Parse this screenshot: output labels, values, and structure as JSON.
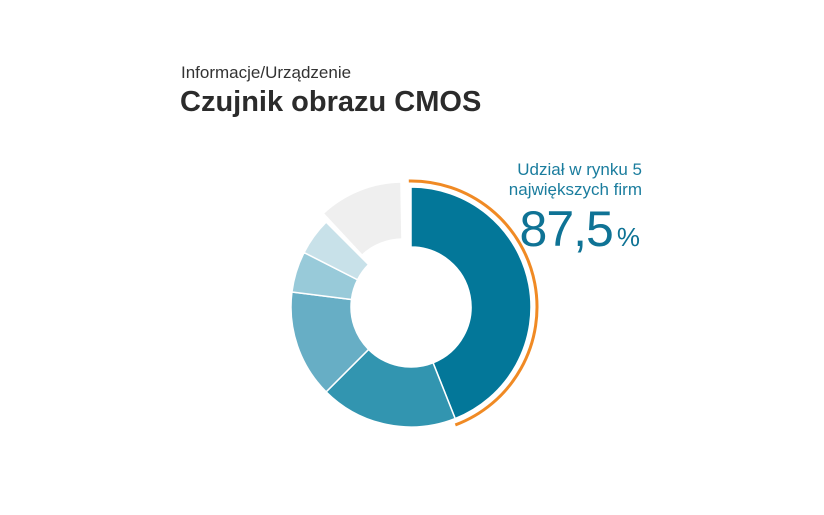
{
  "header": {
    "subtitle": "Informacje/Urządzenie",
    "title": "Czujnik obrazu CMOS"
  },
  "highlight": {
    "label": "Udział w rynku 5 największych firm",
    "value": "87,5",
    "unit": "%",
    "arc_color": "#f08a24"
  },
  "chart_data": {
    "type": "pie",
    "variant": "donut",
    "title": "Czujnik obrazu CMOS",
    "subtitle": "Informacje/Urządzenie",
    "slices": [
      {
        "value": 44.0,
        "color": "#037799"
      },
      {
        "value": 18.5,
        "color": "#3295b0"
      },
      {
        "value": 14.5,
        "color": "#67aec5"
      },
      {
        "value": 5.5,
        "color": "#98cad9"
      },
      {
        "value": 5.0,
        "color": "#c8e1e9"
      },
      {
        "value": 12.5,
        "color": "#efefef"
      }
    ],
    "highlighted_share": {
      "value": 87.5,
      "unit": "%",
      "label": "Udział w rynku 5 największych firm"
    }
  }
}
